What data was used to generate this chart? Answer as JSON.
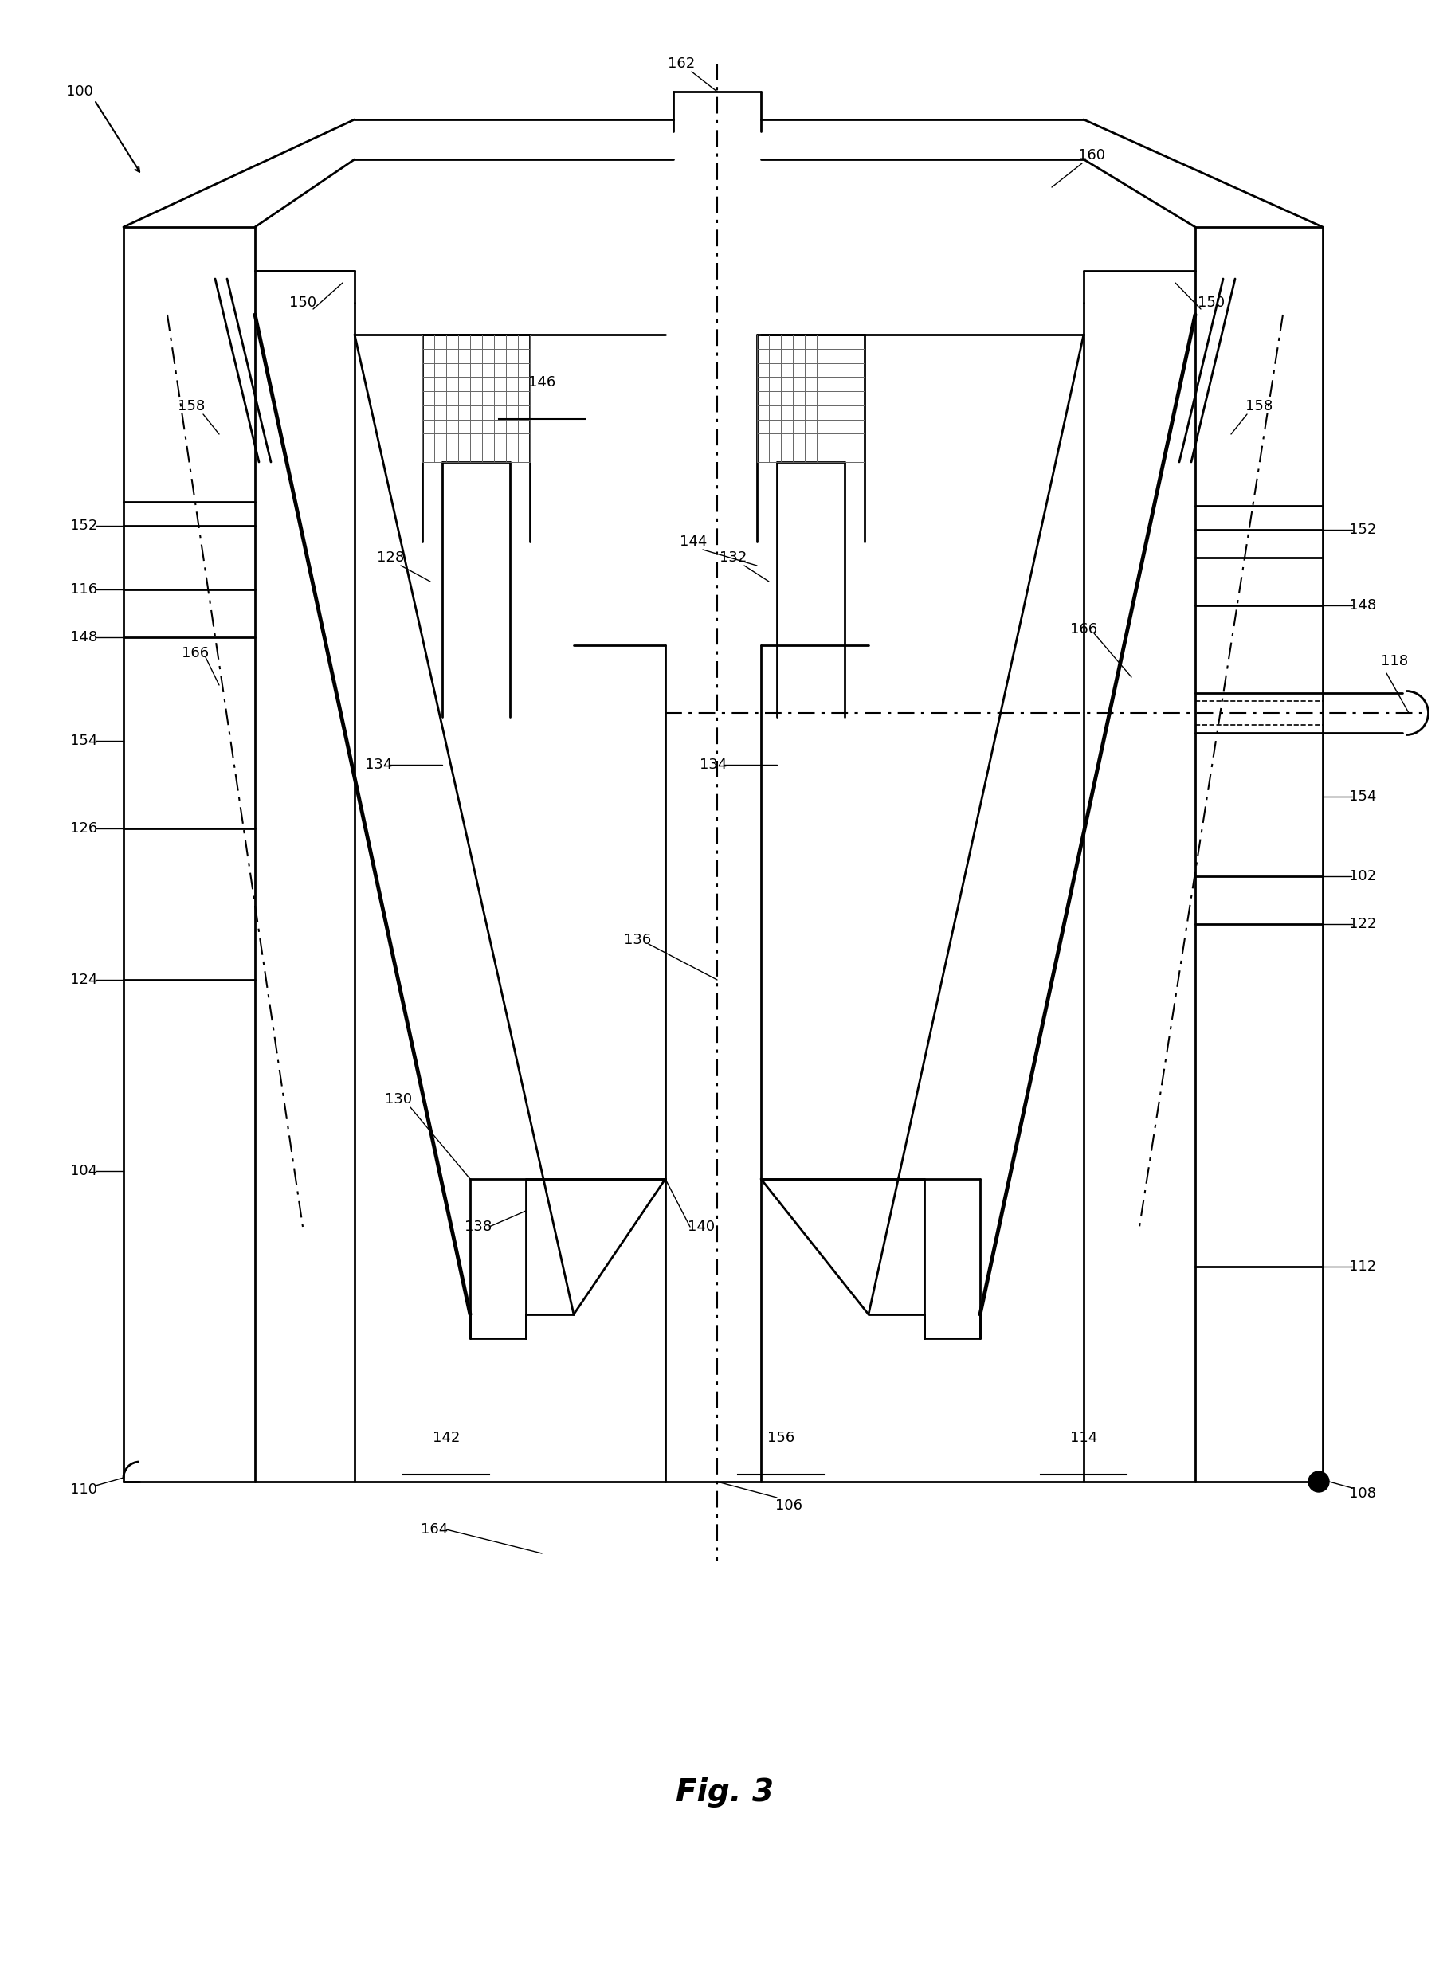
{
  "bg_color": "#ffffff",
  "fig_title": "Fig. 3",
  "lw_main": 2.0,
  "lw_thick": 3.5,
  "lw_thin": 1.2,
  "label_fs": 13,
  "title_fs": 28
}
